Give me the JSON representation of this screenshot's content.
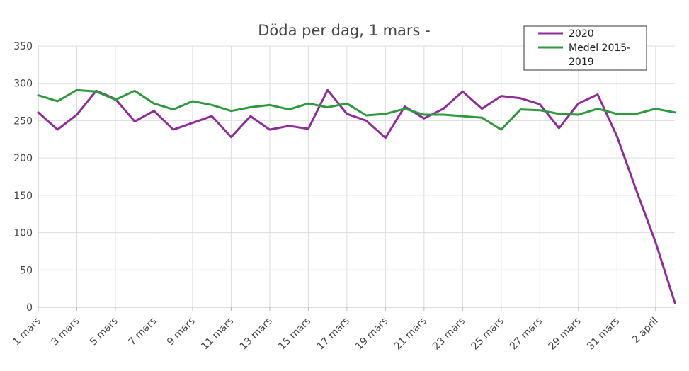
{
  "chart_data": {
    "type": "line",
    "title": "Döda per dag, 1 mars -",
    "xlabel": "",
    "ylabel": "",
    "ylim": [
      0,
      350
    ],
    "yticks": [
      0,
      50,
      100,
      150,
      200,
      250,
      300,
      350
    ],
    "grid": true,
    "legend_position": "top-right",
    "categories": [
      "1 mars",
      "2 mars",
      "3 mars",
      "4 mars",
      "5 mars",
      "6 mars",
      "7 mars",
      "8 mars",
      "9 mars",
      "10 mars",
      "11 mars",
      "12 mars",
      "13 mars",
      "14 mars",
      "15 mars",
      "16 mars",
      "17 mars",
      "18 mars",
      "19 mars",
      "20 mars",
      "21 mars",
      "22 mars",
      "23 mars",
      "24 mars",
      "25 mars",
      "26 mars",
      "27 mars",
      "28 mars",
      "29 mars",
      "30 mars",
      "31 mars",
      "1 april",
      "2 april",
      "3 april"
    ],
    "x_tick_labels": [
      "1 mars",
      "3 mars",
      "5 mars",
      "7 mars",
      "9 mars",
      "11 mars",
      "13 mars",
      "15 mars",
      "17 mars",
      "19 mars",
      "21 mars",
      "23 mars",
      "25 mars",
      "27 mars",
      "29 mars",
      "31 mars",
      "2 april"
    ],
    "series": [
      {
        "name": "2020",
        "color": "#8e2c9a",
        "values": [
          261,
          238,
          258,
          290,
          279,
          249,
          263,
          238,
          247,
          256,
          228,
          256,
          238,
          243,
          239,
          291,
          259,
          250,
          227,
          269,
          253,
          266,
          289,
          266,
          283,
          280,
          272,
          240,
          273,
          285,
          229,
          157,
          87,
          6
        ]
      },
      {
        "name": "Medel 2015-2019",
        "color": "#2e9a3c",
        "values": [
          284,
          276,
          291,
          289,
          278,
          290,
          273,
          265,
          276,
          271,
          263,
          268,
          271,
          265,
          273,
          268,
          273,
          257,
          259,
          266,
          258,
          258,
          256,
          254,
          238,
          265,
          264,
          259,
          258,
          266,
          259,
          259,
          266,
          261
        ]
      }
    ],
    "legend_lines": [
      [
        "2020"
      ],
      [
        "Medel 2015-",
        "2019"
      ]
    ]
  }
}
